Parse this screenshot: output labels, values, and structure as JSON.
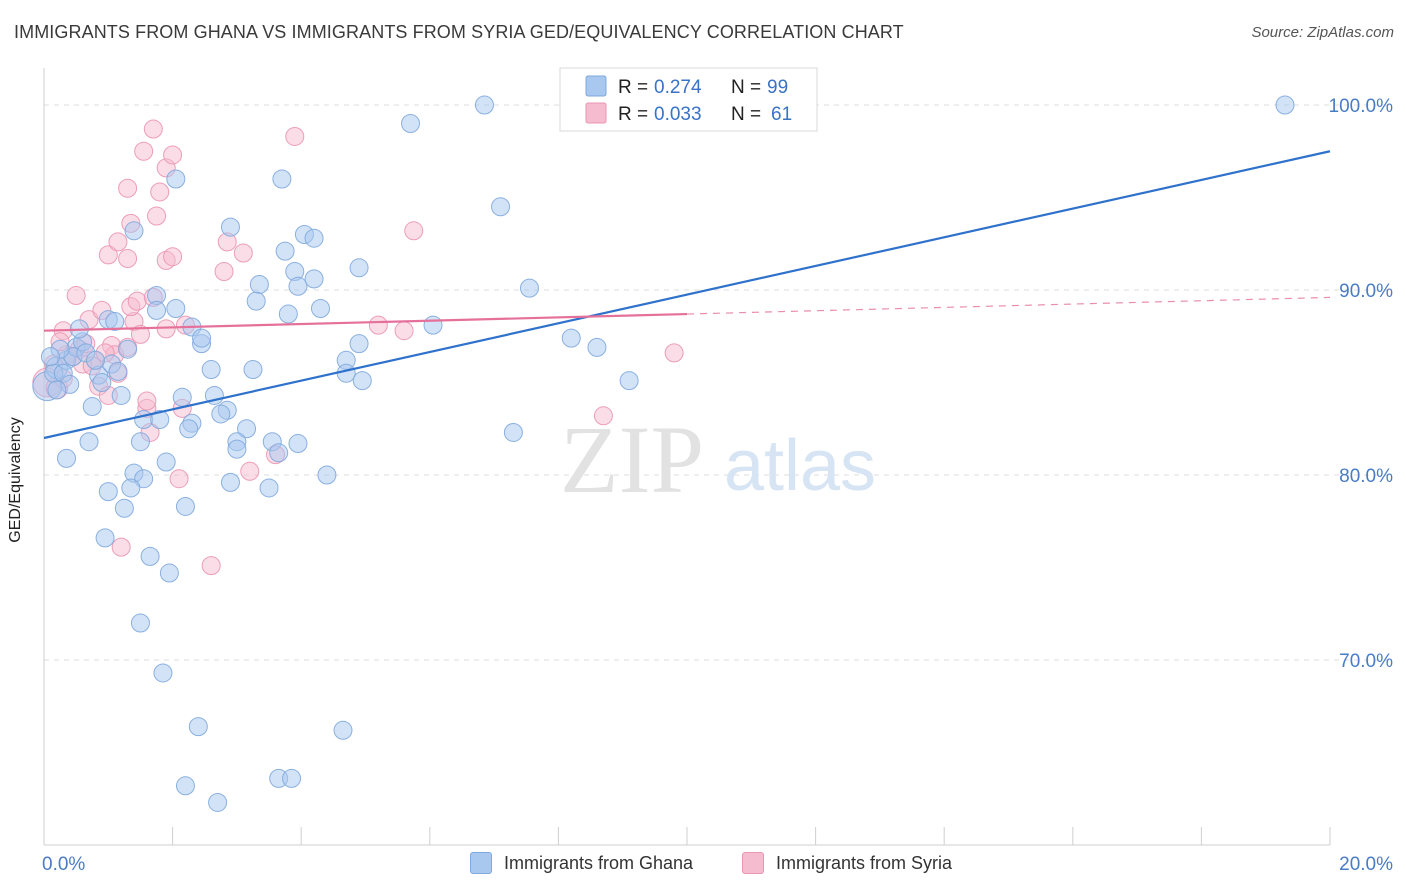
{
  "title": "IMMIGRANTS FROM GHANA VS IMMIGRANTS FROM SYRIA GED/EQUIVALENCY CORRELATION CHART",
  "source": "Source: ZipAtlas.com",
  "watermark": {
    "zip": "ZIP",
    "atlas": "atlas"
  },
  "colors": {
    "ghana_fill": "#a8c8f0",
    "ghana_stroke": "#7fa8dd",
    "ghana_line": "#2f72cc",
    "syria_fill": "#f5bcd0",
    "syria_stroke": "#eb95b2",
    "syria_line": "#e5709a",
    "axis_label": "#4a7cc4",
    "grid": "#dddddd"
  },
  "legend_top": {
    "rows": [
      {
        "r_label": "R =",
        "r_value": "0.274",
        "n_label": "N =",
        "n_value": "99"
      },
      {
        "r_label": "R =",
        "r_value": "0.033",
        "n_label": "N =",
        "n_value": "61"
      }
    ]
  },
  "legend_bottom": [
    "Immigrants from Ghana",
    "Immigrants from Syria"
  ],
  "chart_data": {
    "type": "scatter",
    "xlabel": "",
    "ylabel": "GED/Equivalency",
    "xlim": [
      0,
      20
    ],
    "ylim": [
      60,
      102
    ],
    "x_tick_labels": [
      {
        "value": 0,
        "label": "0.0%"
      },
      {
        "value": 20,
        "label": "20.0%"
      }
    ],
    "y_tick_labels": [
      {
        "value": 100,
        "label": "100.0%"
      },
      {
        "value": 90,
        "label": "90.0%"
      },
      {
        "value": 80,
        "label": "80.0%"
      },
      {
        "value": 70,
        "label": "70.0%"
      }
    ],
    "series": [
      {
        "name": "Immigrants from Ghana",
        "r": 0.274,
        "n": 99,
        "trend": {
          "x": [
            0,
            20
          ],
          "y": [
            82.0,
            97.5
          ]
        },
        "points": [
          [
            0.05,
            84.8,
            1.6
          ],
          [
            0.2,
            85.8,
            1.2
          ],
          [
            0.35,
            86.2,
            1.0
          ],
          [
            0.15,
            85.5,
            1.0
          ],
          [
            0.5,
            86.9,
            1.0
          ],
          [
            0.45,
            86.4,
            1.0
          ],
          [
            0.25,
            86.8,
            1.0
          ],
          [
            0.6,
            87.2,
            1.0
          ],
          [
            0.55,
            87.9,
            1.0
          ],
          [
            0.3,
            85.5,
            1.0
          ],
          [
            0.85,
            85.4,
            1.0
          ],
          [
            0.9,
            85.0,
            1.0
          ],
          [
            1.05,
            86.0,
            1.0
          ],
          [
            1.0,
            88.4,
            1.0
          ],
          [
            1.1,
            88.3,
            1.0
          ],
          [
            1.2,
            84.3,
            1.0
          ],
          [
            0.75,
            83.7,
            1.0
          ],
          [
            0.7,
            81.8,
            1.0
          ],
          [
            1.4,
            93.2,
            1.0
          ],
          [
            1.3,
            86.8,
            1.0
          ],
          [
            1.75,
            89.7,
            1.0
          ],
          [
            1.75,
            88.9,
            1.0
          ],
          [
            2.05,
            89.0,
            1.0
          ],
          [
            2.05,
            96.0,
            1.0
          ],
          [
            2.3,
            88.0,
            1.0
          ],
          [
            2.45,
            87.1,
            1.0
          ],
          [
            2.45,
            87.4,
            1.0
          ],
          [
            2.6,
            85.7,
            1.0
          ],
          [
            2.15,
            84.2,
            1.0
          ],
          [
            2.65,
            84.3,
            1.0
          ],
          [
            1.55,
            83.0,
            1.0
          ],
          [
            1.8,
            83.0,
            1.0
          ],
          [
            2.3,
            82.8,
            1.0
          ],
          [
            2.25,
            82.5,
            1.0
          ],
          [
            1.5,
            81.8,
            1.0
          ],
          [
            1.9,
            80.7,
            1.0
          ],
          [
            0.35,
            80.9,
            1.0
          ],
          [
            1.4,
            80.1,
            1.0
          ],
          [
            1.55,
            79.8,
            1.0
          ],
          [
            1.35,
            79.3,
            1.0
          ],
          [
            1.0,
            79.1,
            1.0
          ],
          [
            1.25,
            78.2,
            1.0
          ],
          [
            2.2,
            78.3,
            1.0
          ],
          [
            0.95,
            76.6,
            1.0
          ],
          [
            1.65,
            75.6,
            1.0
          ],
          [
            1.95,
            74.7,
            1.0
          ],
          [
            1.5,
            72.0,
            1.0
          ],
          [
            1.85,
            69.3,
            1.0
          ],
          [
            2.4,
            66.4,
            1.0
          ],
          [
            2.2,
            63.2,
            1.0
          ],
          [
            2.7,
            62.3,
            1.0
          ],
          [
            3.65,
            63.6,
            1.0
          ],
          [
            3.85,
            63.6,
            1.0
          ],
          [
            4.65,
            66.2,
            1.0
          ],
          [
            2.9,
            93.4,
            1.0
          ],
          [
            3.7,
            96.0,
            1.0
          ],
          [
            3.35,
            90.3,
            1.0
          ],
          [
            3.3,
            89.4,
            1.0
          ],
          [
            3.75,
            92.1,
            1.0
          ],
          [
            3.9,
            91.0,
            1.0
          ],
          [
            3.95,
            90.2,
            1.0
          ],
          [
            4.05,
            93.0,
            1.0
          ],
          [
            4.2,
            92.8,
            1.0
          ],
          [
            4.2,
            90.6,
            1.0
          ],
          [
            4.3,
            89.0,
            1.0
          ],
          [
            3.8,
            88.7,
            1.0
          ],
          [
            4.9,
            91.2,
            1.0
          ],
          [
            4.9,
            87.1,
            1.0
          ],
          [
            4.7,
            86.2,
            1.0
          ],
          [
            4.7,
            85.5,
            1.0
          ],
          [
            4.95,
            85.1,
            1.0
          ],
          [
            3.25,
            85.7,
            1.0
          ],
          [
            2.85,
            83.5,
            1.0
          ],
          [
            2.75,
            83.3,
            1.0
          ],
          [
            3.15,
            82.5,
            1.0
          ],
          [
            3.0,
            81.8,
            1.0
          ],
          [
            3.0,
            81.4,
            1.0
          ],
          [
            3.55,
            81.8,
            1.0
          ],
          [
            3.65,
            81.2,
            1.0
          ],
          [
            3.95,
            81.7,
            1.0
          ],
          [
            2.9,
            79.6,
            1.0
          ],
          [
            3.5,
            79.3,
            1.0
          ],
          [
            4.4,
            80.0,
            1.0
          ],
          [
            5.7,
            99.0,
            1.0
          ],
          [
            6.85,
            100.0,
            1.0
          ],
          [
            7.1,
            94.5,
            1.0
          ],
          [
            7.3,
            82.3,
            1.0
          ],
          [
            7.55,
            90.1,
            1.0
          ],
          [
            6.05,
            88.1,
            1.0
          ],
          [
            8.2,
            87.4,
            1.0
          ],
          [
            8.6,
            86.9,
            1.0
          ],
          [
            9.1,
            85.1,
            1.0
          ],
          [
            19.3,
            100.0,
            1.0
          ],
          [
            0.1,
            86.4,
            1.0
          ],
          [
            0.4,
            84.9,
            1.0
          ],
          [
            0.65,
            86.6,
            1.0
          ],
          [
            1.15,
            85.6,
            1.0
          ],
          [
            0.2,
            84.6,
            1.0
          ],
          [
            0.8,
            86.2,
            1.0
          ]
        ]
      },
      {
        "name": "Immigrants from Syria",
        "r": 0.033,
        "n": 61,
        "trend": {
          "x": [
            0,
            10
          ],
          "y": [
            87.8,
            88.7
          ]
        },
        "trend_extension": {
          "x": [
            10,
            20
          ],
          "y": [
            88.7,
            89.6
          ]
        },
        "points": [
          [
            0.05,
            85.0,
            1.6
          ],
          [
            0.2,
            84.7,
            1.2
          ],
          [
            0.3,
            85.2,
            1.0
          ],
          [
            0.15,
            86.0,
            1.0
          ],
          [
            0.35,
            86.5,
            1.0
          ],
          [
            0.55,
            86.8,
            1.0
          ],
          [
            0.45,
            86.4,
            1.0
          ],
          [
            0.65,
            87.1,
            1.0
          ],
          [
            0.3,
            87.8,
            1.0
          ],
          [
            0.5,
            89.7,
            1.0
          ],
          [
            0.7,
            88.4,
            1.0
          ],
          [
            0.9,
            88.9,
            1.0
          ],
          [
            0.8,
            86.2,
            1.0
          ],
          [
            1.05,
            87.0,
            1.0
          ],
          [
            1.15,
            85.5,
            1.0
          ],
          [
            1.1,
            86.5,
            1.0
          ],
          [
            0.85,
            84.8,
            1.0
          ],
          [
            1.0,
            84.3,
            1.0
          ],
          [
            1.3,
            86.9,
            1.0
          ],
          [
            1.4,
            88.3,
            1.0
          ],
          [
            1.35,
            89.1,
            1.0
          ],
          [
            1.45,
            89.4,
            1.0
          ],
          [
            1.5,
            87.6,
            1.0
          ],
          [
            1.7,
            89.6,
            1.0
          ],
          [
            1.9,
            87.9,
            1.0
          ],
          [
            2.2,
            88.1,
            1.0
          ],
          [
            1.0,
            91.9,
            1.0
          ],
          [
            1.15,
            92.6,
            1.0
          ],
          [
            1.3,
            91.7,
            1.0
          ],
          [
            1.35,
            93.6,
            1.0
          ],
          [
            1.3,
            95.5,
            1.0
          ],
          [
            1.75,
            94.0,
            1.0
          ],
          [
            1.8,
            95.3,
            1.0
          ],
          [
            1.9,
            96.6,
            1.0
          ],
          [
            1.55,
            97.5,
            1.0
          ],
          [
            2.0,
            97.3,
            1.0
          ],
          [
            1.7,
            98.7,
            1.0
          ],
          [
            1.9,
            91.6,
            1.0
          ],
          [
            2.85,
            92.6,
            1.0
          ],
          [
            3.1,
            92.0,
            1.0
          ],
          [
            2.8,
            91.0,
            1.0
          ],
          [
            2.0,
            91.8,
            1.0
          ],
          [
            3.9,
            98.3,
            1.0
          ],
          [
            5.75,
            93.2,
            1.0
          ],
          [
            5.2,
            88.1,
            1.0
          ],
          [
            5.6,
            87.8,
            1.0
          ],
          [
            9.8,
            86.6,
            1.0
          ],
          [
            8.7,
            83.2,
            1.0
          ],
          [
            1.6,
            83.6,
            1.0
          ],
          [
            2.15,
            83.6,
            1.0
          ],
          [
            1.65,
            82.3,
            1.0
          ],
          [
            2.1,
            79.8,
            1.0
          ],
          [
            3.2,
            80.2,
            1.0
          ],
          [
            1.2,
            76.1,
            1.0
          ],
          [
            2.6,
            75.1,
            1.0
          ],
          [
            3.6,
            81.1,
            1.0
          ],
          [
            0.6,
            86.0,
            1.0
          ],
          [
            0.25,
            87.2,
            1.0
          ],
          [
            0.75,
            85.9,
            1.0
          ],
          [
            1.6,
            84.0,
            1.0
          ],
          [
            0.95,
            86.6,
            1.0
          ]
        ]
      }
    ],
    "grid": true,
    "legend_placement": "top-center"
  }
}
